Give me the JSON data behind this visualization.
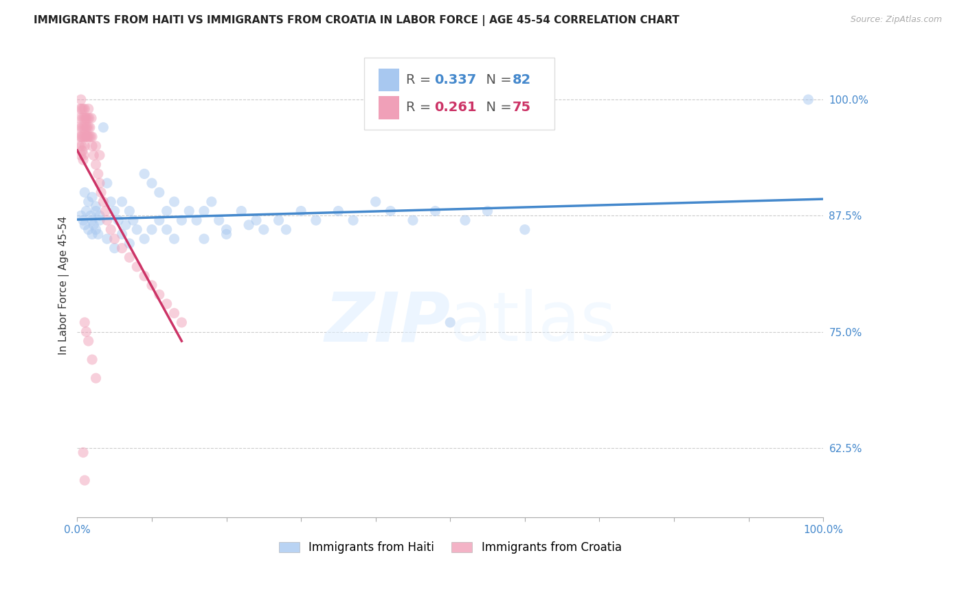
{
  "title": "IMMIGRANTS FROM HAITI VS IMMIGRANTS FROM CROATIA IN LABOR FORCE | AGE 45-54 CORRELATION CHART",
  "source": "Source: ZipAtlas.com",
  "ylabel": "In Labor Force | Age 45-54",
  "haiti_R": 0.337,
  "haiti_N": 82,
  "croatia_R": 0.261,
  "croatia_N": 75,
  "haiti_color": "#a8c8f0",
  "croatia_color": "#f0a0b8",
  "haiti_line_color": "#4488cc",
  "croatia_line_color": "#cc3366",
  "axis_label_color": "#4488cc",
  "legend_text_color_haiti": "#4488cc",
  "legend_text_color_croatia": "#cc3366",
  "watermark": "ZIPatlas",
  "xlim": [
    0.0,
    1.0
  ],
  "ylim": [
    0.55,
    1.05
  ],
  "yticks": [
    0.625,
    0.75,
    0.875,
    1.0
  ],
  "ytick_labels": [
    "62.5%",
    "75.0%",
    "87.5%",
    "100.0%"
  ],
  "background_color": "#ffffff",
  "grid_color": "#cccccc",
  "title_fontsize": 11,
  "axis_fontsize": 10,
  "tick_fontsize": 11,
  "dot_size": 120,
  "dot_alpha": 0.5
}
